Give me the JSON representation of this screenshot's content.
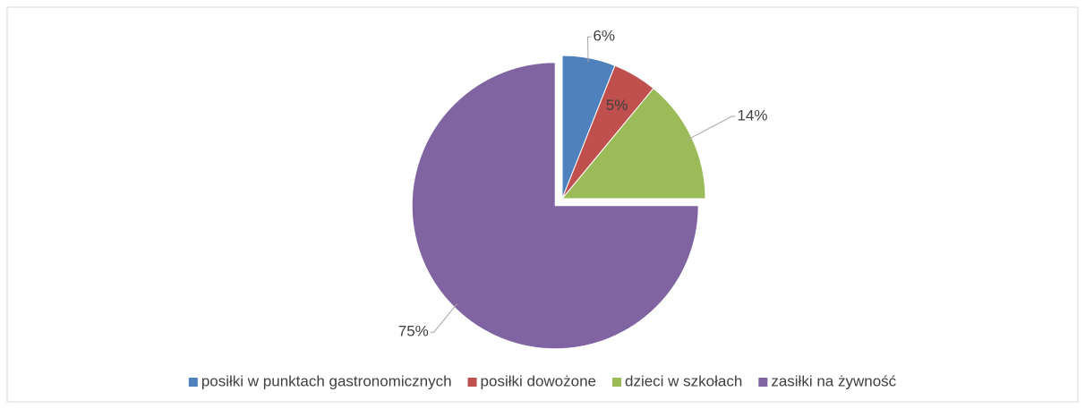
{
  "chart_data": {
    "type": "pie",
    "categories": [
      "posiłki w punktach gastronomicznych",
      "posiłki dowożone",
      "dzieci w szkołach",
      "zasiłki na żywność"
    ],
    "values": [
      6,
      5,
      14,
      75
    ],
    "value_labels": [
      "6%",
      "5%",
      "14%",
      "75%"
    ],
    "colors": [
      "#4f81bd",
      "#c0504d",
      "#9bbb59",
      "#8064a2"
    ],
    "legend": "bottom"
  }
}
